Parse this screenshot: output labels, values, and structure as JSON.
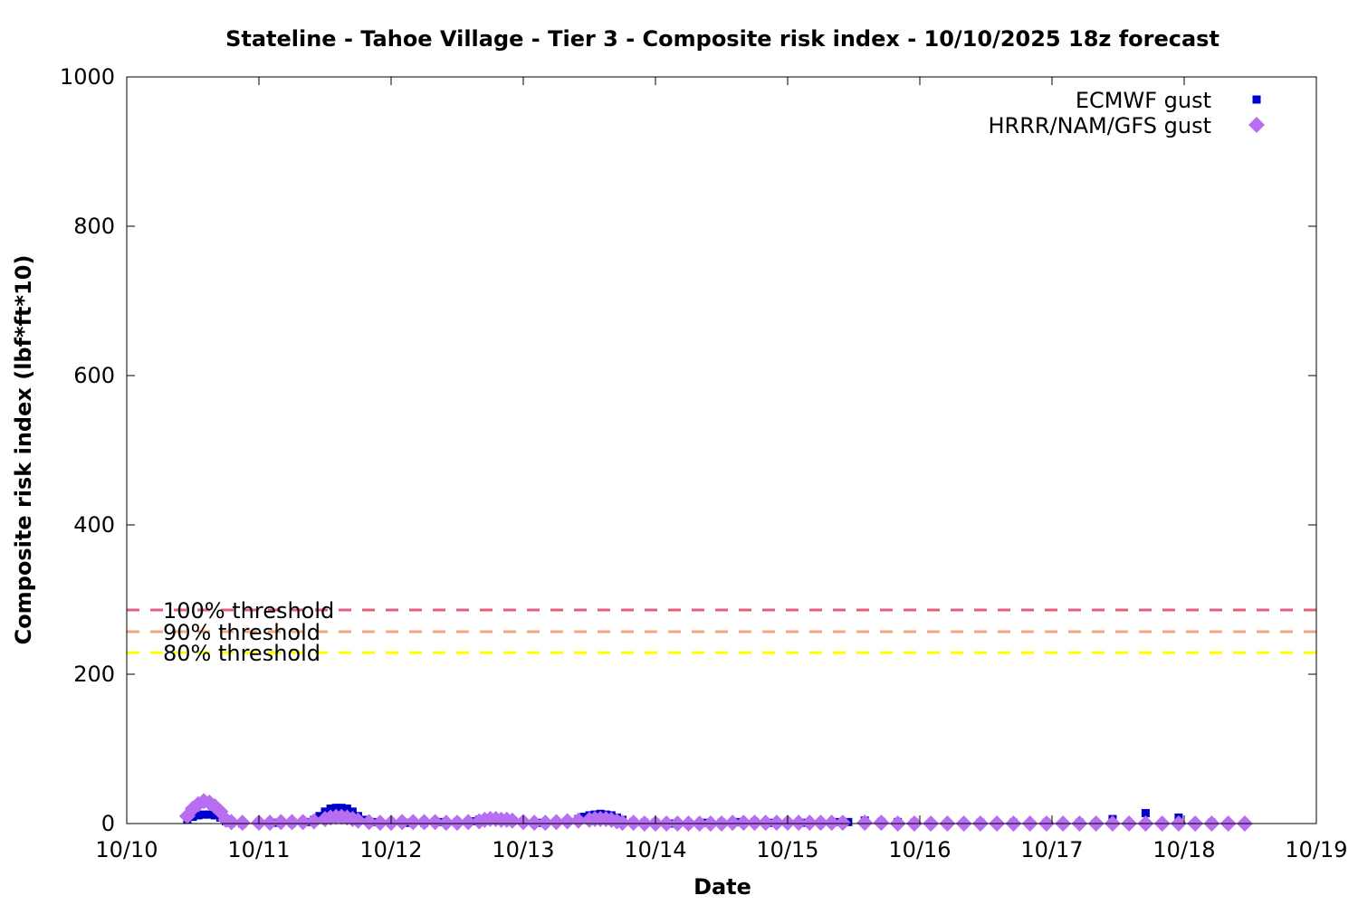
{
  "chart_data": {
    "type": "scatter",
    "title": "Stateline - Tahoe Village - Tier 3 - Composite risk index - 10/10/2025 18z forecast",
    "xlabel": "Date",
    "ylabel": "Composite risk index (lbf*ft*10)",
    "x_type": "date",
    "xlim": [
      "2025-10-10 00:00",
      "2025-10-19 00:00"
    ],
    "ylim": [
      0,
      1000
    ],
    "x_ticks": [
      "10/10",
      "10/11",
      "10/12",
      "10/13",
      "10/14",
      "10/15",
      "10/16",
      "10/17",
      "10/18",
      "10/19"
    ],
    "y_ticks": [
      "0",
      "200",
      "400",
      "600",
      "800",
      "1000"
    ],
    "grid": false,
    "legend_position": "top-right",
    "thresholds": [
      {
        "label": "100% threshold",
        "value": 286,
        "color": "#e0607e"
      },
      {
        "label": "90% threshold",
        "value": 257,
        "color": "#f4a582"
      },
      {
        "label": "80% threshold",
        "value": 229,
        "color": "#ffff00"
      }
    ],
    "series": [
      {
        "name": "ECMWF gust",
        "color": "#0000cc",
        "marker": "square",
        "points": [
          [
            "2025-10-10 11:00",
            6
          ],
          [
            "2025-10-10 12:00",
            9
          ],
          [
            "2025-10-10 13:00",
            11
          ],
          [
            "2025-10-10 14:00",
            12
          ],
          [
            "2025-10-10 15:00",
            12
          ],
          [
            "2025-10-10 16:00",
            11
          ],
          [
            "2025-10-10 17:00",
            8
          ],
          [
            "2025-10-10 18:00",
            3
          ],
          [
            "2025-10-10 19:00",
            1
          ],
          [
            "2025-10-10 21:00",
            0
          ],
          [
            "2025-10-11 00:00",
            1
          ],
          [
            "2025-10-11 03:00",
            1
          ],
          [
            "2025-10-11 06:00",
            1
          ],
          [
            "2025-10-11 09:00",
            2
          ],
          [
            "2025-10-11 10:00",
            5
          ],
          [
            "2025-10-11 11:00",
            10
          ],
          [
            "2025-10-11 12:00",
            16
          ],
          [
            "2025-10-11 13:00",
            20
          ],
          [
            "2025-10-11 14:00",
            21
          ],
          [
            "2025-10-11 15:00",
            21
          ],
          [
            "2025-10-11 16:00",
            20
          ],
          [
            "2025-10-11 17:00",
            16
          ],
          [
            "2025-10-11 18:00",
            10
          ],
          [
            "2025-10-11 19:00",
            5
          ],
          [
            "2025-10-11 21:00",
            2
          ],
          [
            "2025-10-12 00:00",
            1
          ],
          [
            "2025-10-12 03:00",
            1
          ],
          [
            "2025-10-12 06:00",
            1
          ],
          [
            "2025-10-12 09:00",
            2
          ],
          [
            "2025-10-12 12:00",
            2
          ],
          [
            "2025-10-12 15:00",
            3
          ],
          [
            "2025-10-12 16:00",
            5
          ],
          [
            "2025-10-12 18:00",
            5
          ],
          [
            "2025-10-12 20:00",
            4
          ],
          [
            "2025-10-12 22:00",
            3
          ],
          [
            "2025-10-13 00:00",
            2
          ],
          [
            "2025-10-13 03:00",
            1
          ],
          [
            "2025-10-13 06:00",
            2
          ],
          [
            "2025-10-13 08:00",
            3
          ],
          [
            "2025-10-13 10:00",
            6
          ],
          [
            "2025-10-13 11:00",
            9
          ],
          [
            "2025-10-13 12:00",
            11
          ],
          [
            "2025-10-13 13:00",
            12
          ],
          [
            "2025-10-13 14:00",
            13
          ],
          [
            "2025-10-13 15:00",
            12
          ],
          [
            "2025-10-13 16:00",
            11
          ],
          [
            "2025-10-13 17:00",
            8
          ],
          [
            "2025-10-13 18:00",
            5
          ],
          [
            "2025-10-13 20:00",
            2
          ],
          [
            "2025-10-13 22:00",
            1
          ],
          [
            "2025-10-14 00:00",
            1
          ],
          [
            "2025-10-14 03:00",
            0
          ],
          [
            "2025-10-14 06:00",
            0
          ],
          [
            "2025-10-14 09:00",
            1
          ],
          [
            "2025-10-14 12:00",
            1
          ],
          [
            "2025-10-14 15:00",
            2
          ],
          [
            "2025-10-14 18:00",
            2
          ],
          [
            "2025-10-14 21:00",
            1
          ],
          [
            "2025-10-15 00:00",
            1
          ],
          [
            "2025-10-15 03:00",
            1
          ],
          [
            "2025-10-15 06:00",
            1
          ],
          [
            "2025-10-15 09:00",
            2
          ],
          [
            "2025-10-15 11:00",
            2
          ],
          [
            "2025-10-15 14:00",
            4
          ],
          [
            "2025-10-15 17:00",
            2
          ],
          [
            "2025-10-15 20:00",
            2
          ],
          [
            "2025-10-15 23:00",
            1
          ],
          [
            "2025-10-16 02:00",
            0
          ],
          [
            "2025-10-16 05:00",
            0
          ],
          [
            "2025-10-16 11:00",
            1
          ],
          [
            "2025-10-16 17:00",
            1
          ],
          [
            "2025-10-16 23:00",
            1
          ],
          [
            "2025-10-17 05:00",
            1
          ],
          [
            "2025-10-17 11:00",
            6
          ],
          [
            "2025-10-17 17:00",
            14
          ],
          [
            "2025-10-17 23:00",
            8
          ],
          [
            "2025-10-18 05:00",
            1
          ]
        ]
      },
      {
        "name": "HRRR/NAM/GFS gust",
        "color": "#b86ef0",
        "marker": "diamond",
        "points": [
          [
            "2025-10-10 11:00",
            10
          ],
          [
            "2025-10-10 12:00",
            20
          ],
          [
            "2025-10-10 13:00",
            26
          ],
          [
            "2025-10-10 14:00",
            30
          ],
          [
            "2025-10-10 15:00",
            28
          ],
          [
            "2025-10-10 16:00",
            23
          ],
          [
            "2025-10-10 17:00",
            16
          ],
          [
            "2025-10-10 18:00",
            5
          ],
          [
            "2025-10-10 19:00",
            2
          ],
          [
            "2025-10-10 21:00",
            1
          ],
          [
            "2025-10-11 00:00",
            1
          ],
          [
            "2025-10-11 02:00",
            1
          ],
          [
            "2025-10-11 04:00",
            2
          ],
          [
            "2025-10-11 06:00",
            2
          ],
          [
            "2025-10-11 08:00",
            2
          ],
          [
            "2025-10-11 10:00",
            3
          ],
          [
            "2025-10-11 12:00",
            6
          ],
          [
            "2025-10-11 13:00",
            8
          ],
          [
            "2025-10-11 14:00",
            9
          ],
          [
            "2025-10-11 15:00",
            9
          ],
          [
            "2025-10-11 16:00",
            8
          ],
          [
            "2025-10-11 17:00",
            6
          ],
          [
            "2025-10-11 18:00",
            4
          ],
          [
            "2025-10-11 20:00",
            2
          ],
          [
            "2025-10-11 22:00",
            1
          ],
          [
            "2025-10-12 00:00",
            1
          ],
          [
            "2025-10-12 02:00",
            2
          ],
          [
            "2025-10-12 04:00",
            2
          ],
          [
            "2025-10-12 06:00",
            2
          ],
          [
            "2025-10-12 08:00",
            2
          ],
          [
            "2025-10-12 10:00",
            1
          ],
          [
            "2025-10-12 12:00",
            1
          ],
          [
            "2025-10-12 14:00",
            2
          ],
          [
            "2025-10-12 16:00",
            3
          ],
          [
            "2025-10-12 17:00",
            5
          ],
          [
            "2025-10-12 18:00",
            6
          ],
          [
            "2025-10-12 19:00",
            6
          ],
          [
            "2025-10-12 20:00",
            5
          ],
          [
            "2025-10-12 21:00",
            5
          ],
          [
            "2025-10-12 22:00",
            4
          ],
          [
            "2025-10-13 00:00",
            2
          ],
          [
            "2025-10-13 02:00",
            1
          ],
          [
            "2025-10-13 04:00",
            1
          ],
          [
            "2025-10-13 06:00",
            2
          ],
          [
            "2025-10-13 08:00",
            3
          ],
          [
            "2025-10-13 10:00",
            4
          ],
          [
            "2025-10-13 12:00",
            5
          ],
          [
            "2025-10-13 13:00",
            6
          ],
          [
            "2025-10-13 14:00",
            6
          ],
          [
            "2025-10-13 15:00",
            6
          ],
          [
            "2025-10-13 16:00",
            5
          ],
          [
            "2025-10-13 17:00",
            3
          ],
          [
            "2025-10-13 18:00",
            1
          ],
          [
            "2025-10-13 20:00",
            1
          ],
          [
            "2025-10-13 22:00",
            0
          ],
          [
            "2025-10-14 00:00",
            0
          ],
          [
            "2025-10-14 02:00",
            0
          ],
          [
            "2025-10-14 04:00",
            0
          ],
          [
            "2025-10-14 06:00",
            0
          ],
          [
            "2025-10-14 08:00",
            0
          ],
          [
            "2025-10-14 10:00",
            0
          ],
          [
            "2025-10-14 12:00",
            0
          ],
          [
            "2025-10-14 14:00",
            1
          ],
          [
            "2025-10-14 16:00",
            1
          ],
          [
            "2025-10-14 18:00",
            1
          ],
          [
            "2025-10-14 20:00",
            1
          ],
          [
            "2025-10-14 22:00",
            1
          ],
          [
            "2025-10-15 00:00",
            1
          ],
          [
            "2025-10-15 02:00",
            1
          ],
          [
            "2025-10-15 04:00",
            1
          ],
          [
            "2025-10-15 06:00",
            1
          ],
          [
            "2025-10-15 08:00",
            1
          ],
          [
            "2025-10-15 10:00",
            1
          ],
          [
            "2025-10-15 14:00",
            1
          ],
          [
            "2025-10-15 17:00",
            1
          ],
          [
            "2025-10-15 20:00",
            0
          ],
          [
            "2025-10-15 23:00",
            0
          ],
          [
            "2025-10-16 02:00",
            0
          ],
          [
            "2025-10-16 05:00",
            0
          ],
          [
            "2025-10-16 08:00",
            0
          ],
          [
            "2025-10-16 11:00",
            0
          ],
          [
            "2025-10-16 14:00",
            0
          ],
          [
            "2025-10-16 17:00",
            0
          ],
          [
            "2025-10-16 20:00",
            0
          ],
          [
            "2025-10-16 23:00",
            0
          ],
          [
            "2025-10-17 02:00",
            0
          ],
          [
            "2025-10-17 05:00",
            0
          ],
          [
            "2025-10-17 08:00",
            0
          ],
          [
            "2025-10-17 11:00",
            0
          ],
          [
            "2025-10-17 14:00",
            0
          ],
          [
            "2025-10-17 17:00",
            0
          ],
          [
            "2025-10-17 20:00",
            0
          ],
          [
            "2025-10-17 23:00",
            0
          ],
          [
            "2025-10-18 02:00",
            0
          ],
          [
            "2025-10-18 05:00",
            0
          ],
          [
            "2025-10-18 08:00",
            0
          ],
          [
            "2025-10-18 11:00",
            0
          ]
        ]
      }
    ]
  }
}
